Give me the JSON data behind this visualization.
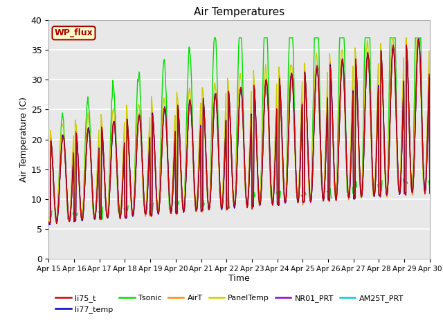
{
  "title": "Air Temperatures",
  "xlabel": "Time",
  "ylabel": "Air Temperature (C)",
  "ylim": [
    0,
    40
  ],
  "annotation_text": "WP_flux",
  "annotation_bg": "#ffffcc",
  "annotation_border": "#aa0000",
  "bg_color": "#e8e8e8",
  "ytick_values": [
    0,
    5,
    10,
    15,
    20,
    25,
    30,
    35,
    40
  ],
  "legend_ncol": 6,
  "legend_entries": [
    {
      "label": "li75_t",
      "color": "#cc0000"
    },
    {
      "label": "li77_temp",
      "color": "#0000cc"
    },
    {
      "label": "Tsonic",
      "color": "#00dd00"
    },
    {
      "label": "AirT",
      "color": "#ff8800"
    },
    {
      "label": "PanelTemp",
      "color": "#cccc00"
    },
    {
      "label": "NR01_PRT",
      "color": "#9900cc"
    },
    {
      "label": "AM25T_PRT",
      "color": "#00cccc"
    }
  ]
}
